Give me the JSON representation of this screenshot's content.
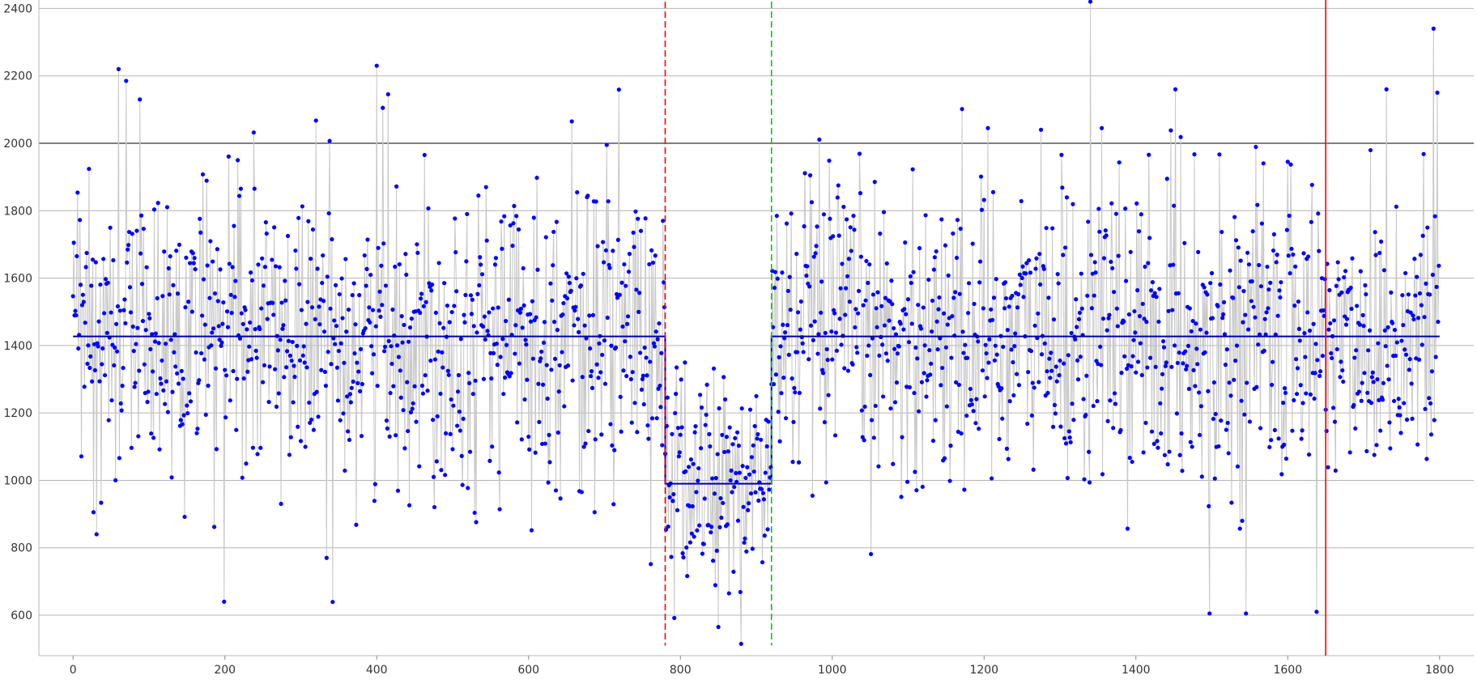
{
  "chart_data": {
    "type": "scatter",
    "title": "",
    "xlabel": "",
    "ylabel": "",
    "xlim": [
      -45,
      1845
    ],
    "ylim": [
      480,
      2425
    ],
    "x_ticks": [
      0,
      200,
      400,
      600,
      800,
      1000,
      1200,
      1400,
      1600,
      1800
    ],
    "y_ticks": [
      600,
      800,
      1000,
      1200,
      1400,
      1600,
      1800,
      2000,
      2200,
      2400
    ],
    "grid": "horizontal",
    "reference_line": {
      "y": 2000,
      "color": "#000000"
    },
    "series": [
      {
        "color": "#0000ff",
        "connector_color": "#c8c8c8",
        "n_points": 1800,
        "segments": [
          {
            "from": 0,
            "to": 780,
            "mean": 1427,
            "sd": 215
          },
          {
            "from": 780,
            "to": 920,
            "mean": 990,
            "sd": 175
          },
          {
            "from": 920,
            "to": 1800,
            "mean": 1427,
            "sd": 215
          }
        ],
        "highlighted_points": [
          {
            "x": 1,
            "y": 1705
          },
          {
            "x": 60,
            "y": 2220
          },
          {
            "x": 70,
            "y": 2185
          },
          {
            "x": 88,
            "y": 2130
          },
          {
            "x": 199,
            "y": 640
          },
          {
            "x": 31,
            "y": 840
          },
          {
            "x": 334,
            "y": 770
          },
          {
            "x": 400,
            "y": 2230
          },
          {
            "x": 408,
            "y": 2105
          },
          {
            "x": 1340,
            "y": 2420
          },
          {
            "x": 1452,
            "y": 2160
          },
          {
            "x": 1730,
            "y": 2160
          },
          {
            "x": 1792,
            "y": 2340
          },
          {
            "x": 1797,
            "y": 2150
          },
          {
            "x": 880,
            "y": 515
          },
          {
            "x": 850,
            "y": 565
          },
          {
            "x": 1497,
            "y": 605
          },
          {
            "x": 1545,
            "y": 605
          },
          {
            "x": 1638,
            "y": 610
          },
          {
            "x": 1600,
            "y": 1945
          },
          {
            "x": 1008,
            "y": 1875
          },
          {
            "x": 1205,
            "y": 2045
          },
          {
            "x": 1275,
            "y": 2040
          },
          {
            "x": 1355,
            "y": 2045
          },
          {
            "x": 703,
            "y": 1995
          },
          {
            "x": 657,
            "y": 2065
          }
        ]
      },
      {
        "type": "step",
        "color": "#0000aa",
        "segments": [
          {
            "x0": 0,
            "x1": 780,
            "y": 1427
          },
          {
            "x0": 780,
            "x1": 920,
            "y": 990
          },
          {
            "x0": 920,
            "x1": 1800,
            "y": 1427
          }
        ]
      }
    ],
    "vertical_markers": [
      {
        "x": 780,
        "style": "dashed",
        "color": "#ff0000",
        "y_range": [
          510,
          2420
        ]
      },
      {
        "x": 920,
        "style": "dashed",
        "color": "#00cc00",
        "y_range": [
          510,
          2420
        ]
      },
      {
        "x": 1650,
        "style": "solid",
        "color": "#ff0000",
        "y_range": [
          480,
          2425
        ]
      }
    ]
  }
}
